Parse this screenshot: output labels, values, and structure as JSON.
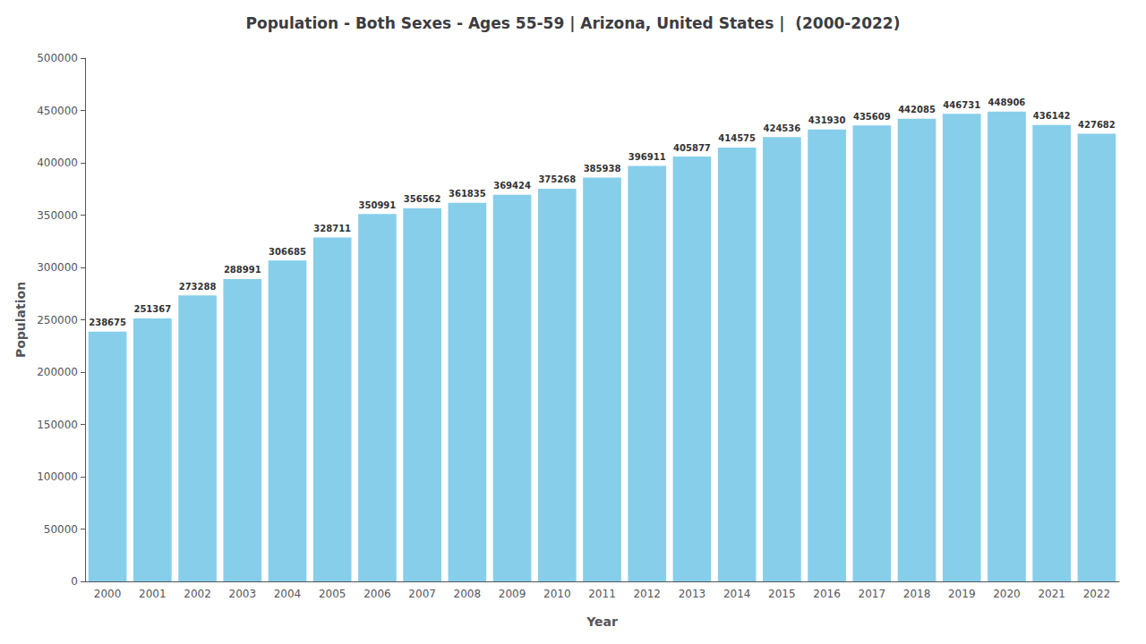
{
  "chart_data": {
    "type": "bar",
    "title": "Population - Both Sexes - Ages 55-59 | Arizona, United States |  (2000-2022)",
    "xlabel": "Year",
    "ylabel": "Population",
    "categories": [
      "2000",
      "2001",
      "2002",
      "2003",
      "2004",
      "2005",
      "2006",
      "2007",
      "2008",
      "2009",
      "2010",
      "2011",
      "2012",
      "2013",
      "2014",
      "2015",
      "2016",
      "2017",
      "2018",
      "2019",
      "2020",
      "2021",
      "2022"
    ],
    "values": [
      238675,
      251367,
      273288,
      288991,
      306685,
      328711,
      350991,
      356562,
      361835,
      369424,
      375268,
      385938,
      396911,
      405877,
      414575,
      424536,
      431930,
      435609,
      442085,
      446731,
      448906,
      436142,
      427682
    ],
    "color": "#87CEEB",
    "ylim": [
      0,
      500000
    ],
    "yticks": [
      0,
      50000,
      100000,
      150000,
      200000,
      250000,
      300000,
      350000,
      400000,
      450000,
      500000
    ],
    "grid": false,
    "data_labels": true
  }
}
